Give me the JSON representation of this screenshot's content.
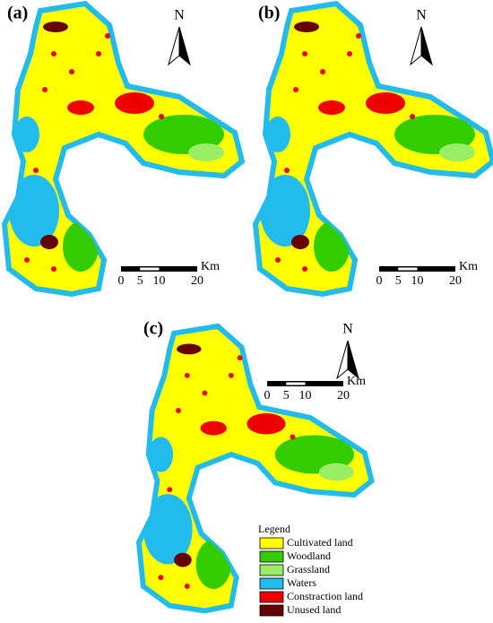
{
  "panels": [
    {
      "label": "(a)",
      "north": "N",
      "scale": {
        "ticks": [
          0,
          5,
          10,
          20
        ],
        "unit": "Km"
      }
    },
    {
      "label": "(b)",
      "north": "N",
      "scale": {
        "ticks": [
          0,
          5,
          10,
          20
        ],
        "unit": "Km"
      }
    },
    {
      "label": "(c)",
      "north": "N",
      "scale": {
        "ticks": [
          0,
          5,
          10,
          20
        ],
        "unit": "Km"
      }
    }
  ],
  "legend": {
    "title": "Legend",
    "items": [
      {
        "label": "Cultivated land",
        "color": "#ffff00"
      },
      {
        "label": "Woodland",
        "color": "#33cc00"
      },
      {
        "label": "Grassland",
        "color": "#99ee66"
      },
      {
        "label": "Waters",
        "color": "#22bbee"
      },
      {
        "label": "Constraction land",
        "color": "#ee0000"
      },
      {
        "label": "Unused land",
        "color": "#660000"
      }
    ]
  }
}
